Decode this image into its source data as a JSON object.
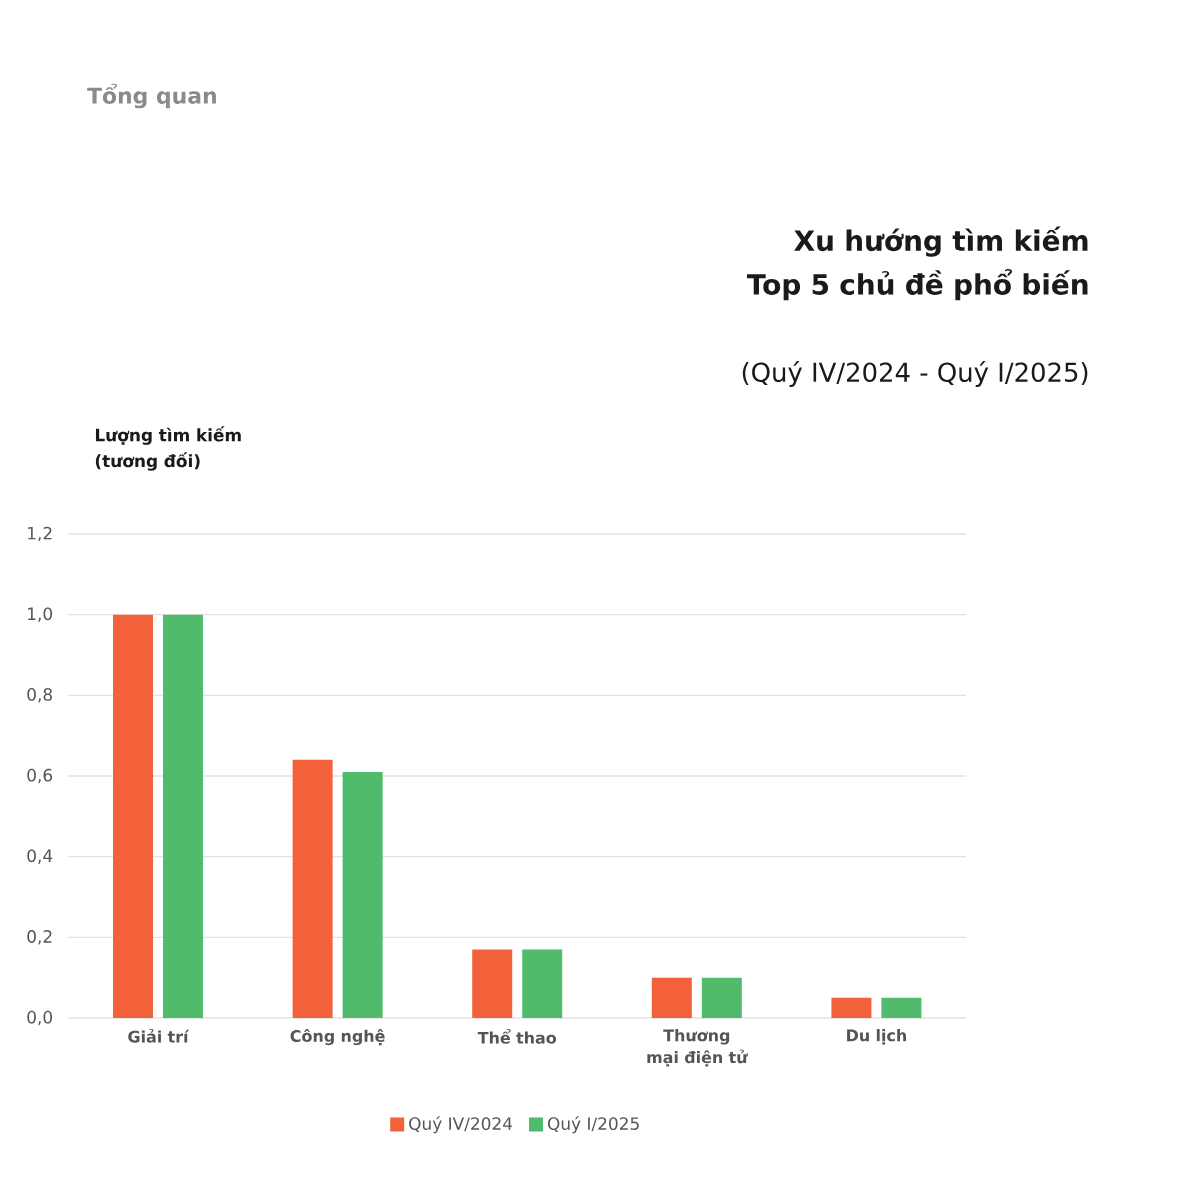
{
  "chart_data": {
    "type": "bar",
    "title": "Xu hướng tìm kiếm Top 5 chủ đề phổ biến",
    "subtitle": "(Quý IV/2024 - Quý I/2025)",
    "ylabel": "Lượng tìm kiếm (tương đối)",
    "annotations": [
      "Tổng quan"
    ],
    "categories": [
      "Giải trí",
      "Công nghệ",
      "Thể thao",
      "Thương mại điện tử",
      "Du lịch"
    ],
    "series": [
      {
        "name": "Quý IV/2024",
        "color": "#f26139",
        "values": [
          1.0,
          0.64,
          0.17,
          0.1,
          0.05
        ]
      },
      {
        "name": "Quý I/2025",
        "color": "#4fbb6b",
        "values": [
          1.0,
          0.61,
          0.17,
          0.1,
          0.05
        ]
      }
    ],
    "ylim": [
      0,
      1.2
    ],
    "yticks": [
      {
        "value": 0,
        "label": "0,0"
      },
      {
        "value": 0.2,
        "label": "0,2"
      },
      {
        "value": 0.4,
        "label": "0,4"
      },
      {
        "value": 0.6,
        "label": "0,6"
      },
      {
        "value": 0.8,
        "label": "0,8"
      },
      {
        "value": 1.0,
        "label": "1,0"
      },
      {
        "value": 1.2,
        "label": "1,2"
      }
    ],
    "grid": "y",
    "legend": "bottom"
  }
}
